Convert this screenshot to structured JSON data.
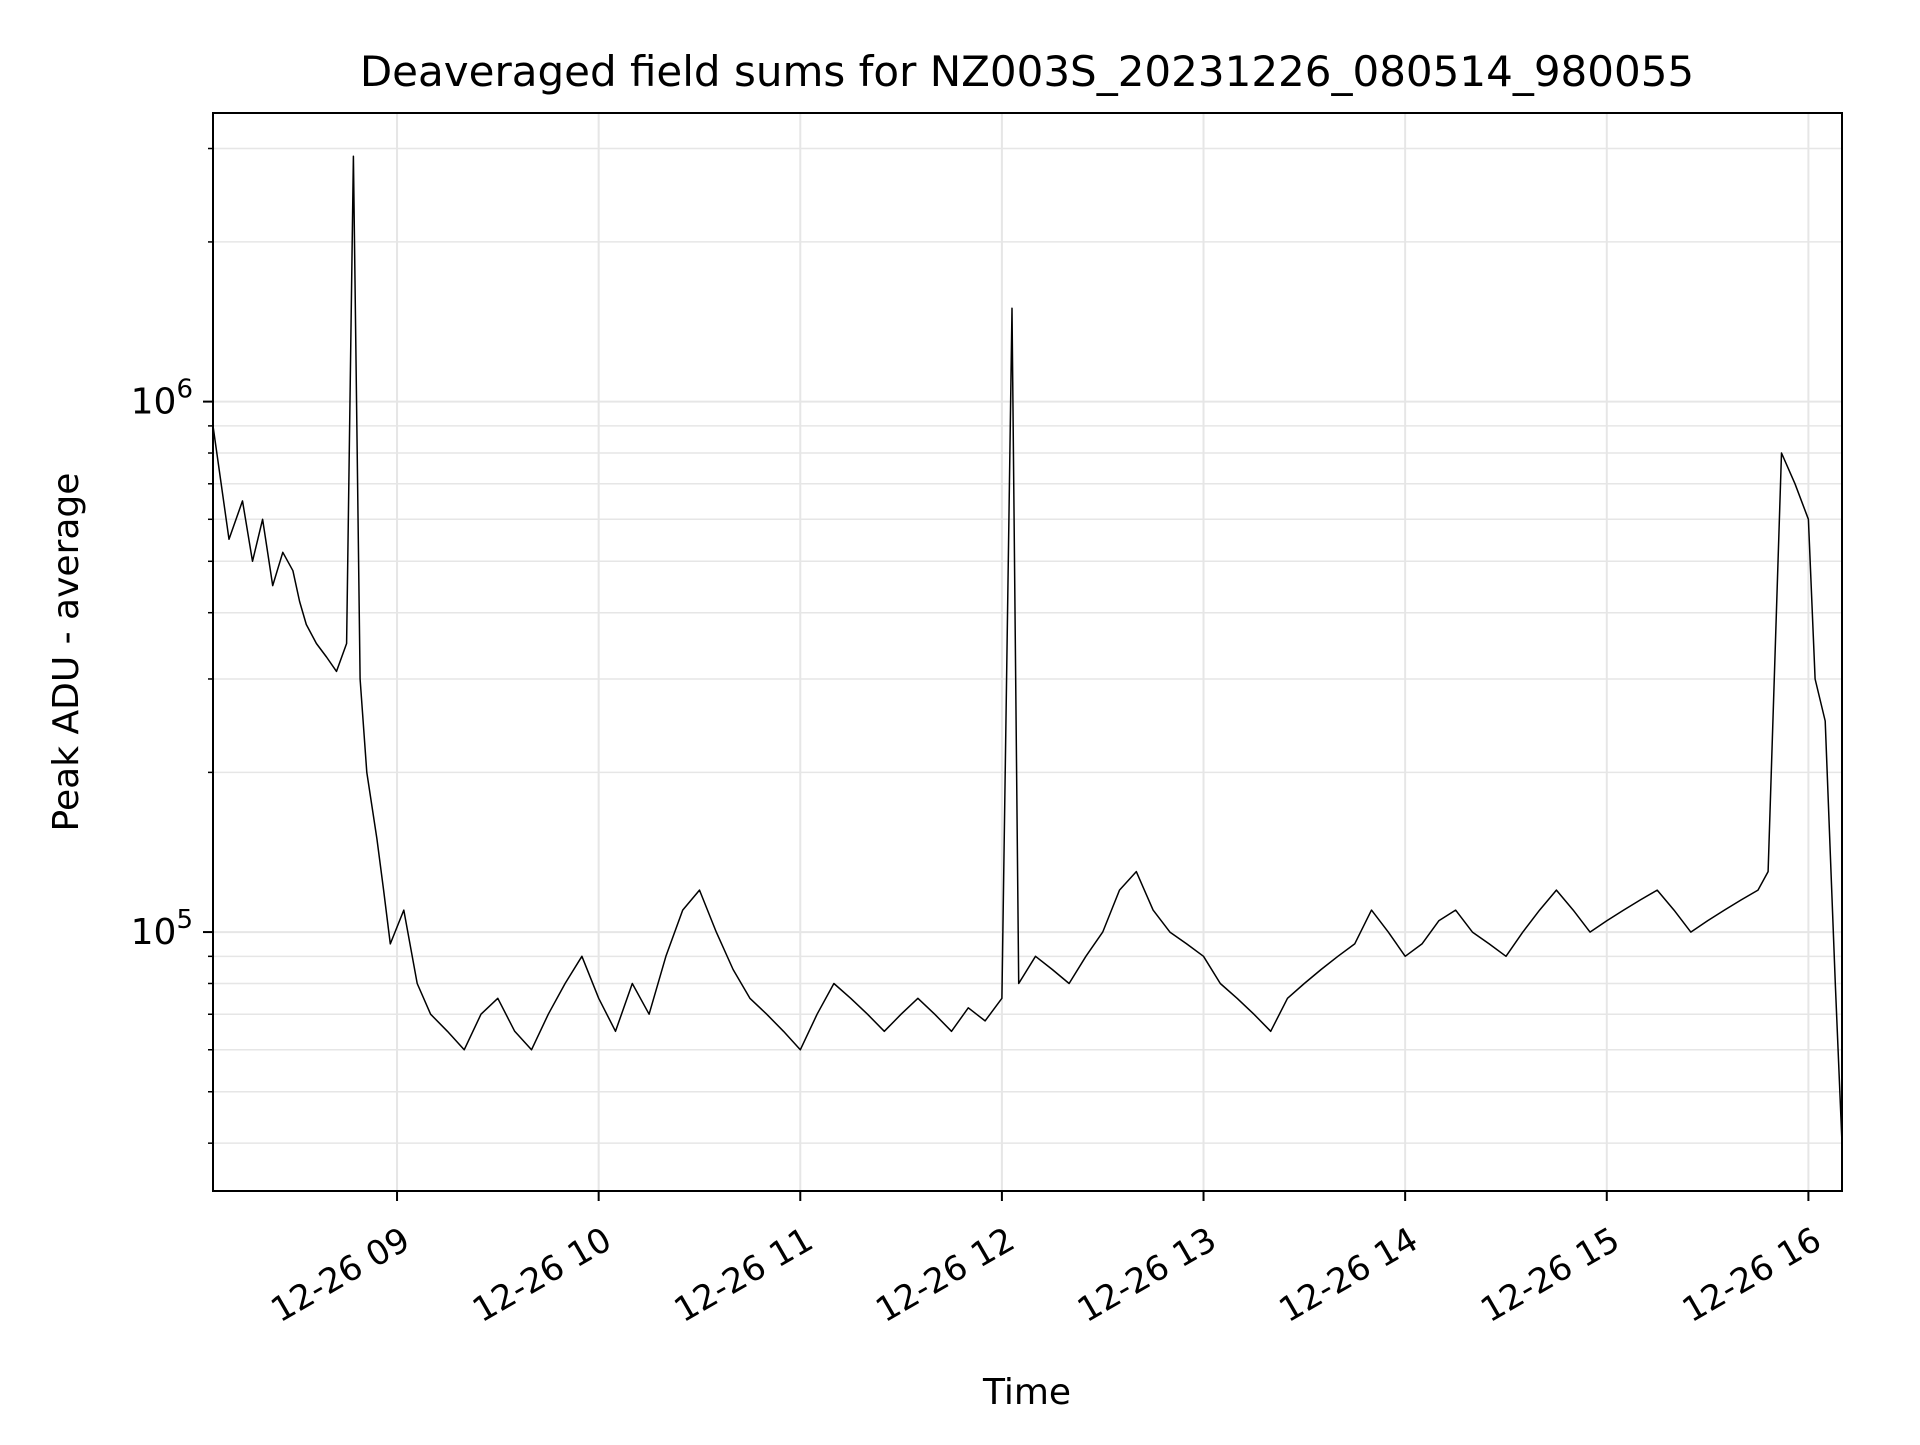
{
  "chart_data": {
    "type": "line",
    "title": "Deaveraged field sums for NZ003S_20231226_080514_980055",
    "xlabel": "Time",
    "ylabel": "Peak ADU - average",
    "yscale": "log",
    "ylim": [
      32500,
      3500000
    ],
    "xlim": [
      "2023-12-26 08:05:14",
      "2023-12-26 16:10:00"
    ],
    "grid": true,
    "legend": "none",
    "x_ticks": [
      {
        "time": "2023-12-26 09:00",
        "label": "12-26 09"
      },
      {
        "time": "2023-12-26 10:00",
        "label": "12-26 10"
      },
      {
        "time": "2023-12-26 11:00",
        "label": "12-26 11"
      },
      {
        "time": "2023-12-26 12:00",
        "label": "12-26 12"
      },
      {
        "time": "2023-12-26 13:00",
        "label": "12-26 13"
      },
      {
        "time": "2023-12-26 14:00",
        "label": "12-26 14"
      },
      {
        "time": "2023-12-26 15:00",
        "label": "12-26 15"
      },
      {
        "time": "2023-12-26 16:00",
        "label": "12-26 16"
      }
    ],
    "y_ticks": [
      {
        "value": 100000,
        "base": "10",
        "exp": "5"
      },
      {
        "value": 1000000,
        "base": "10",
        "exp": "6"
      }
    ],
    "series": [
      {
        "color": "#000000",
        "x": [
          "08:05",
          "08:10",
          "08:14",
          "08:17",
          "08:20",
          "08:23",
          "08:26",
          "08:29",
          "08:31",
          "08:33",
          "08:36",
          "08:39",
          "08:42",
          "08:45",
          "08:47",
          "08:49",
          "08:51",
          "08:54",
          "08:56",
          "08:58",
          "09:02",
          "09:06",
          "09:10",
          "09:15",
          "09:20",
          "09:25",
          "09:30",
          "09:35",
          "09:40",
          "09:45",
          "09:50",
          "09:55",
          "10:00",
          "10:05",
          "10:10",
          "10:15",
          "10:20",
          "10:25",
          "10:30",
          "10:35",
          "10:40",
          "10:45",
          "10:50",
          "10:55",
          "11:00",
          "11:05",
          "11:10",
          "11:15",
          "11:20",
          "11:25",
          "11:30",
          "11:35",
          "11:40",
          "11:45",
          "11:50",
          "11:55",
          "12:00",
          "12:03",
          "12:05",
          "12:10",
          "12:15",
          "12:20",
          "12:25",
          "12:30",
          "12:35",
          "12:40",
          "12:45",
          "12:50",
          "12:55",
          "13:00",
          "13:05",
          "13:10",
          "13:15",
          "13:20",
          "13:25",
          "13:30",
          "13:35",
          "13:40",
          "13:45",
          "13:50",
          "13:55",
          "14:00",
          "14:05",
          "14:10",
          "14:15",
          "14:20",
          "14:25",
          "14:30",
          "14:35",
          "14:40",
          "14:45",
          "14:50",
          "14:55",
          "15:00",
          "15:05",
          "15:10",
          "15:15",
          "15:20",
          "15:25",
          "15:30",
          "15:35",
          "15:40",
          "15:45",
          "15:48",
          "15:52",
          "15:56",
          "16:00",
          "16:02",
          "16:05",
          "16:08",
          "16:10"
        ],
        "y": [
          900000,
          550000,
          650000,
          500000,
          600000,
          450000,
          520000,
          480000,
          420000,
          380000,
          350000,
          330000,
          310000,
          350000,
          2900000,
          300000,
          200000,
          150000,
          120000,
          95000,
          110000,
          80000,
          70000,
          65000,
          60000,
          70000,
          75000,
          65000,
          60000,
          70000,
          80000,
          90000,
          75000,
          65000,
          80000,
          70000,
          90000,
          110000,
          120000,
          100000,
          85000,
          75000,
          70000,
          65000,
          60000,
          70000,
          80000,
          75000,
          70000,
          65000,
          70000,
          75000,
          70000,
          65000,
          72000,
          68000,
          75000,
          1500000,
          80000,
          90000,
          85000,
          80000,
          90000,
          100000,
          120000,
          130000,
          110000,
          100000,
          95000,
          90000,
          80000,
          75000,
          70000,
          65000,
          75000,
          80000,
          85000,
          90000,
          95000,
          110000,
          100000,
          90000,
          95000,
          105000,
          110000,
          100000,
          95000,
          90000,
          100000,
          110000,
          120000,
          110000,
          100000,
          105000,
          110000,
          115000,
          120000,
          110000,
          100000,
          105000,
          110000,
          115000,
          120000,
          130000,
          800000,
          700000,
          600000,
          300000,
          250000,
          80000,
          40000
        ]
      }
    ]
  }
}
